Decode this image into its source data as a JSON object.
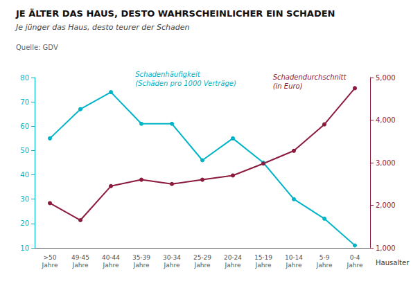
{
  "chart_data": {
    "type": "line",
    "title": "JE ÄLTER DAS HAUS, DESTO WAHRSCHEINLICHER EIN SCHADEN",
    "subtitle": "Je jünger das Haus, desto teurer der Schaden",
    "source": "Quelle: GDV",
    "xlabel": "Hausalter",
    "categories": [
      ">50\nJahre",
      "49-45\nJahre",
      "40-44\nJahre",
      "35-39\nJahre",
      "30-34\nJahre",
      "25-29\nJahre",
      "20-24\nJahre",
      "15-19\nJahre",
      "10-14\nJahre",
      "5-9\nJahre",
      "0-4\nJahre"
    ],
    "series": [
      {
        "name": "Schadenhäufigkeit\n(Schäden pro 1000 Verträge)",
        "color": "#00b4c8",
        "marker": "circle",
        "values": [
          55,
          67,
          74,
          61,
          61,
          46,
          55,
          45,
          30,
          22,
          11
        ]
      },
      {
        "name": "Schadendurchschnitt\n(in Euro)",
        "color": "#8b1a3c",
        "marker": "circle",
        "axis": "y2",
        "values": [
          2050,
          1650,
          2450,
          2600,
          2500,
          2600,
          2700,
          2980,
          3280,
          3900,
          4750
        ]
      }
    ],
    "ylim": [
      10,
      80
    ],
    "yticks": [
      10,
      20,
      30,
      40,
      50,
      60,
      70,
      80
    ],
    "y2lim": [
      1000,
      5000
    ],
    "y2ticks": [
      1000,
      2000,
      3000,
      4000,
      5000
    ],
    "grid": false
  }
}
